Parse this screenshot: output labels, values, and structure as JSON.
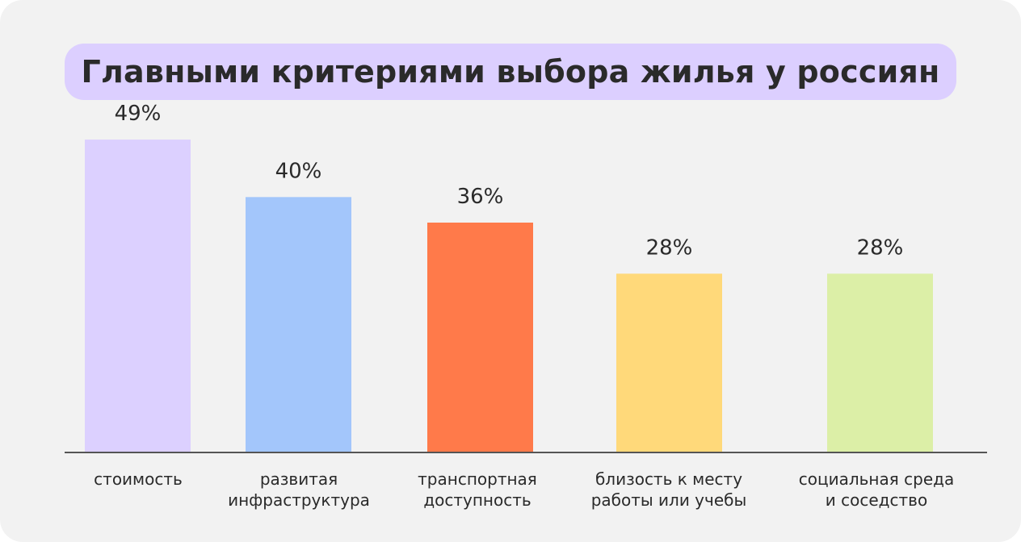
{
  "title": "Главными критериями выбора жилья у россиян",
  "chart_data": {
    "type": "bar",
    "title": "Главными критериями выбора жилья у россиян",
    "categories": [
      [
        "стоимость"
      ],
      [
        "развитая",
        "инфраструктура"
      ],
      [
        "транспортная",
        "доступность"
      ],
      [
        "близость к месту",
        "работы или учебы"
      ],
      [
        "социальная среда",
        "и соседство"
      ]
    ],
    "values": [
      49,
      40,
      36,
      28,
      28
    ],
    "value_labels": [
      "49%",
      "40%",
      "36%",
      "28%",
      "28%"
    ],
    "colors": [
      "#dcd0ff",
      "#a3c6fb",
      "#ff7a4a",
      "#ffd97a",
      "#dcefa7"
    ],
    "axis_color": "#555555",
    "ylim": [
      0,
      60
    ],
    "grid": false,
    "legend": "none"
  }
}
